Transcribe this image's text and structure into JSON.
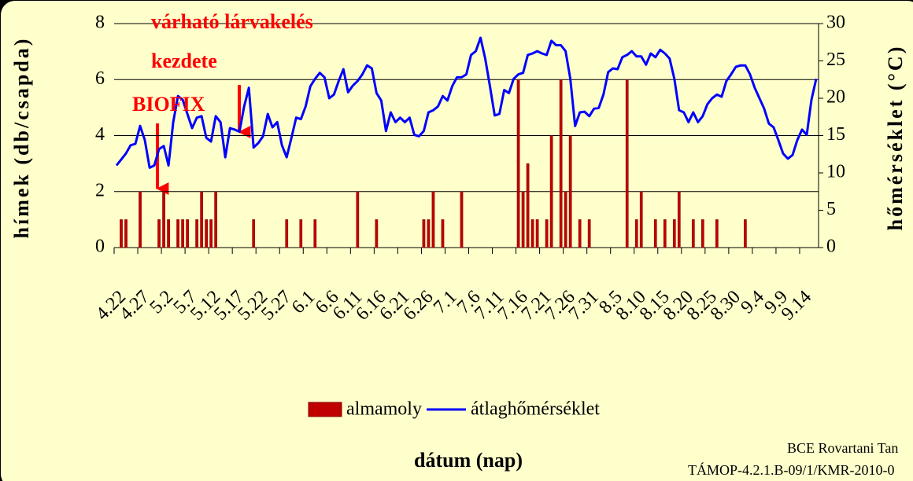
{
  "chart_data": {
    "type": "bar",
    "y_label": "hímek (db/csapda)",
    "y2_label": "hőmérséklet (°C)",
    "x_label": "dátum (nap)",
    "annotations": [
      "várható lárvakelés",
      "kezdete",
      "BIOFIX"
    ],
    "source": [
      "BCE Rovartani Tan",
      "TÁMOP-4.2.1.B-09/1/KMR-2010-0"
    ],
    "legend": "bottom",
    "grid": true,
    "ylim": [
      0,
      8
    ],
    "yticks": [
      0,
      2,
      4,
      6,
      8
    ],
    "y2lim": [
      0,
      30
    ],
    "y2ticks": [
      0,
      5,
      10,
      15,
      20,
      25,
      30
    ],
    "categories": [
      "4.22",
      null,
      null,
      null,
      null,
      "4.27",
      null,
      null,
      null,
      null,
      "5.2",
      null,
      null,
      null,
      null,
      "5.7",
      null,
      null,
      null,
      null,
      "5.12",
      null,
      null,
      null,
      null,
      "5.17",
      null,
      null,
      null,
      null,
      "5.22",
      null,
      null,
      null,
      null,
      "5.27",
      null,
      null,
      null,
      null,
      "6.1",
      null,
      null,
      null,
      null,
      "6.6",
      null,
      null,
      null,
      null,
      "6.11",
      null,
      null,
      null,
      null,
      "6.16",
      null,
      null,
      null,
      null,
      "6.21",
      null,
      null,
      null,
      null,
      "6.26",
      null,
      null,
      null,
      null,
      "7.1",
      null,
      null,
      null,
      null,
      "7.6",
      null,
      null,
      null,
      null,
      "7.11",
      null,
      null,
      null,
      null,
      "7.16",
      null,
      null,
      null,
      null,
      "7.21",
      null,
      null,
      null,
      null,
      "7.26",
      null,
      null,
      null,
      null,
      "7.31",
      null,
      null,
      null,
      null,
      "8.5",
      null,
      null,
      null,
      null,
      "8.10",
      null,
      null,
      null,
      null,
      "8.15",
      null,
      null,
      null,
      null,
      "8.20",
      null,
      null,
      null,
      null,
      "8.25",
      null,
      null,
      null,
      null,
      "8.30",
      null,
      null,
      null,
      null,
      "9.4",
      null,
      null,
      null,
      null,
      "9.9",
      null,
      null,
      null,
      null,
      "9.14",
      null,
      null,
      null
    ],
    "series": [
      {
        "name": "almamoly",
        "type": "bar",
        "color": "#c00000",
        "values": [
          0,
          1,
          1,
          0,
          0,
          2,
          0,
          0,
          0,
          1,
          2,
          1,
          0,
          1,
          1,
          1,
          0,
          1,
          2,
          1,
          1,
          2,
          0,
          0,
          0,
          0,
          0,
          0,
          0,
          1,
          0,
          0,
          0,
          0,
          0,
          0,
          1,
          0,
          0,
          1,
          0,
          0,
          1,
          0,
          0,
          0,
          0,
          0,
          0,
          0,
          0,
          2,
          0,
          0,
          0,
          1,
          0,
          0,
          0,
          0,
          0,
          0,
          0,
          0,
          0,
          1,
          1,
          2,
          0,
          1,
          0,
          0,
          0,
          2,
          0,
          0,
          0,
          0,
          0,
          0,
          0,
          0,
          0,
          0,
          0,
          6,
          2,
          3,
          1,
          1,
          0,
          1,
          4,
          0,
          6,
          2,
          4,
          0,
          1,
          0,
          1,
          0,
          0,
          0,
          0,
          0,
          0,
          0,
          6,
          0,
          1,
          2,
          0,
          0,
          1,
          0,
          1,
          0,
          1,
          2,
          0,
          0,
          1,
          0,
          1,
          0,
          0,
          1,
          0,
          0,
          0,
          0,
          0,
          1,
          0,
          0,
          0,
          0,
          0,
          0,
          0,
          0,
          0,
          0,
          0,
          0,
          0,
          0,
          0
        ]
      },
      {
        "name": "átlaghőmérséklet",
        "type": "line",
        "color": "#0000ff",
        "axis": "y2",
        "values": [
          11,
          11.8,
          12.6,
          13.7,
          13.9,
          16.3,
          14.4,
          10.7,
          11,
          13.2,
          13.6,
          11,
          16.8,
          20.3,
          19.8,
          17.9,
          16,
          17.4,
          17.6,
          14.7,
          14.2,
          17.6,
          16.8,
          12.1,
          16,
          15.8,
          15.5,
          18.9,
          21.4,
          13.4,
          14,
          14.9,
          17.9,
          16.1,
          16.8,
          13.7,
          12.1,
          14.7,
          17.4,
          17.2,
          18.9,
          21.6,
          22.6,
          23.4,
          22.8,
          20,
          20.5,
          22.3,
          23.9,
          20.8,
          21.7,
          22.3,
          23.2,
          24.4,
          24,
          20.7,
          19.7,
          15.6,
          18.1,
          16.8,
          17.4,
          16.8,
          17.4,
          15.1,
          14.9,
          15.6,
          18.1,
          18.4,
          18.9,
          20.3,
          19.7,
          21.6,
          22.8,
          22.8,
          23.2,
          25.8,
          26.3,
          28.1,
          25.3,
          21.6,
          17.7,
          17.9,
          21.1,
          20.7,
          22.6,
          23.2,
          23.4,
          25.8,
          26,
          26.3,
          26,
          25.8,
          27.7,
          27.1,
          27.1,
          26.3,
          22.6,
          16.3,
          18.1,
          18.2,
          17.6,
          18.6,
          18.7,
          20.5,
          23.5,
          24,
          23.9,
          25.5,
          25.8,
          26.3,
          25.6,
          25.6,
          24.5,
          26,
          25.5,
          26.5,
          26,
          25.3,
          22.6,
          18.4,
          18.1,
          16.8,
          18.1,
          16.8,
          17.6,
          19.2,
          20,
          20.5,
          20.2,
          22.3,
          23.2,
          24.2,
          24.4,
          24.4,
          23.2,
          21.4,
          20,
          18.6,
          16.6,
          16.1,
          14.4,
          12.6,
          11.9,
          12.4,
          14.4,
          15.8,
          15.1,
          19.8,
          22.6
        ]
      }
    ]
  }
}
